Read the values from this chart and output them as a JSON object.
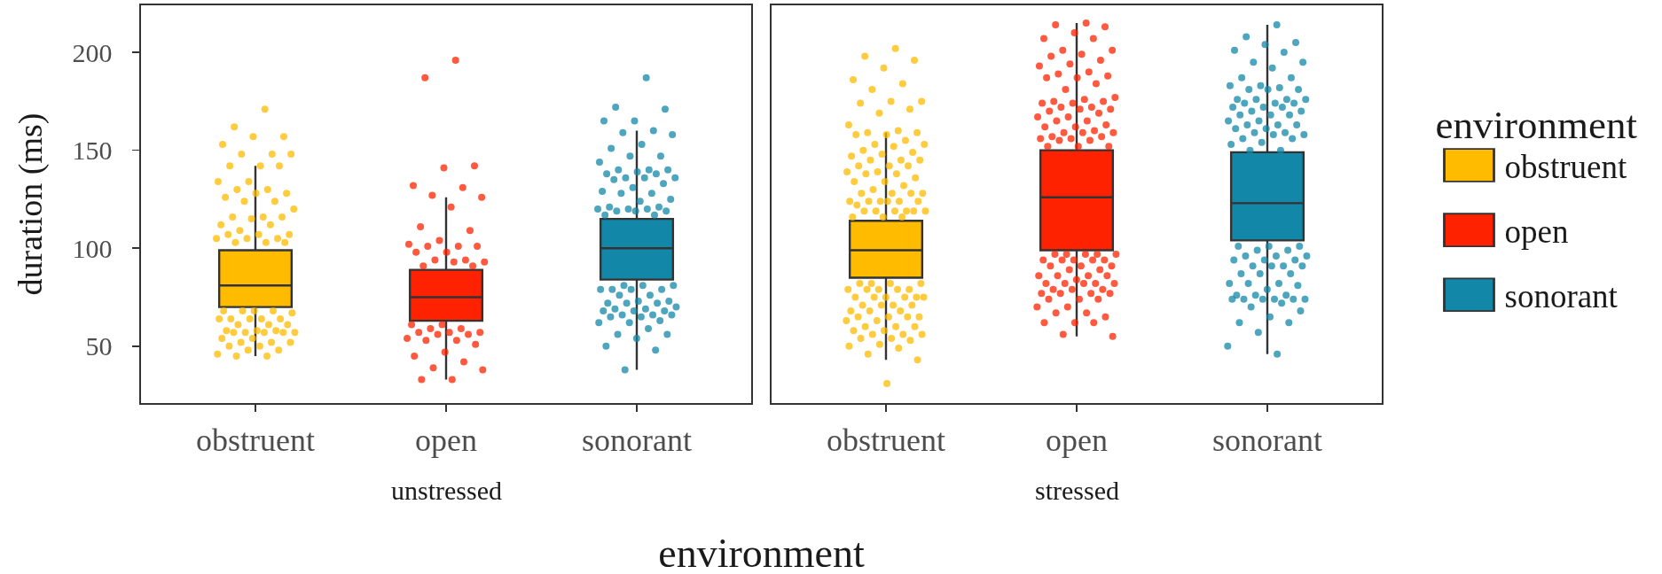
{
  "chart_data": [
    {
      "type": "box",
      "title": "unstressed",
      "xlabel": "environment",
      "ylabel": "duration (ms)",
      "categories": [
        "obstruent",
        "open",
        "sonorant"
      ],
      "colors": [
        "#ffbb00",
        "#ff2200",
        "#1287a8"
      ],
      "boxes": [
        {
          "low": 45,
          "q1": 70,
          "median": 81,
          "q3": 99,
          "high": 142
        },
        {
          "low": 33,
          "q1": 63,
          "median": 75,
          "q3": 89,
          "high": 126
        },
        {
          "low": 38,
          "q1": 84,
          "median": 100,
          "q3": 115,
          "high": 160
        }
      ],
      "series": [
        {
          "type": "scatter",
          "color": "#ffbb00",
          "x": [
            "obstruent",
            "obstruent",
            "obstruent",
            "obstruent",
            "obstruent",
            "obstruent",
            "obstruent",
            "obstruent",
            "obstruent",
            "obstruent",
            "obstruent",
            "obstruent",
            "obstruent",
            "obstruent",
            "obstruent",
            "obstruent",
            "obstruent",
            "obstruent",
            "obstruent",
            "obstruent",
            "obstruent",
            "obstruent",
            "obstruent",
            "obstruent",
            "obstruent",
            "obstruent",
            "obstruent",
            "obstruent",
            "obstruent",
            "obstruent",
            "obstruent",
            "obstruent",
            "obstruent",
            "obstruent",
            "obstruent",
            "obstruent",
            "obstruent",
            "obstruent",
            "obstruent",
            "obstruent",
            "obstruent",
            "obstruent",
            "obstruent",
            "obstruent",
            "obstruent",
            "obstruent",
            "obstruent",
            "obstruent",
            "obstruent",
            "obstruent",
            "obstruent",
            "obstruent",
            "obstruent",
            "obstruent",
            "obstruent",
            "obstruent",
            "obstruent",
            "obstruent",
            "obstruent",
            "obstruent",
            "obstruent",
            "obstruent",
            "obstruent",
            "obstruent",
            "obstruent",
            "obstruent",
            "obstruent",
            "obstruent",
            "obstruent",
            "obstruent"
          ],
          "values": [
            171,
            162,
            157,
            157,
            153,
            148,
            148,
            148,
            142,
            142,
            142,
            134,
            134,
            130,
            130,
            128,
            128,
            126,
            124,
            124,
            120,
            116,
            116,
            116,
            115,
            112,
            112,
            109,
            107,
            107,
            107,
            105,
            105,
            105,
            103,
            103,
            103,
            68,
            68,
            68,
            68,
            67,
            64,
            64,
            64,
            64,
            64,
            61,
            61,
            61,
            58,
            58,
            58,
            57,
            57,
            57,
            57,
            57,
            54,
            54,
            52,
            52,
            52,
            50,
            50,
            48,
            48,
            46,
            45,
            45
          ]
        },
        {
          "type": "scatter",
          "color": "#ff2200",
          "x": [
            "open",
            "open",
            "open",
            "open",
            "open",
            "open",
            "open",
            "open",
            "open",
            "open",
            "open",
            "open",
            "open",
            "open",
            "open",
            "open",
            "open",
            "open",
            "open",
            "open",
            "open",
            "open",
            "open",
            "open",
            "open",
            "open",
            "open",
            "open",
            "open",
            "open",
            "open",
            "open",
            "open",
            "open",
            "open",
            "open",
            "open",
            "open",
            "open",
            "open",
            "open",
            "open",
            "open",
            "open"
          ],
          "values": [
            196,
            187,
            142,
            141,
            132,
            131,
            127,
            126,
            121,
            111,
            109,
            104,
            102,
            101,
            101,
            101,
            98,
            98,
            94,
            94,
            93,
            93,
            91,
            91,
            61,
            61,
            59,
            59,
            57,
            57,
            57,
            56,
            56,
            54,
            53,
            53,
            51,
            47,
            45,
            42,
            39,
            38,
            33,
            33
          ]
        },
        {
          "type": "scatter",
          "color": "#1287a8",
          "x": [
            "sonorant",
            "sonorant",
            "sonorant",
            "sonorant",
            "sonorant",
            "sonorant",
            "sonorant",
            "sonorant",
            "sonorant",
            "sonorant",
            "sonorant",
            "sonorant",
            "sonorant",
            "sonorant",
            "sonorant",
            "sonorant",
            "sonorant",
            "sonorant",
            "sonorant",
            "sonorant",
            "sonorant",
            "sonorant",
            "sonorant",
            "sonorant",
            "sonorant",
            "sonorant",
            "sonorant",
            "sonorant",
            "sonorant",
            "sonorant",
            "sonorant",
            "sonorant",
            "sonorant",
            "sonorant",
            "sonorant",
            "sonorant",
            "sonorant",
            "sonorant",
            "sonorant",
            "sonorant",
            "sonorant",
            "sonorant",
            "sonorant",
            "sonorant",
            "sonorant",
            "sonorant",
            "sonorant",
            "sonorant",
            "sonorant",
            "sonorant",
            "sonorant",
            "sonorant",
            "sonorant",
            "sonorant",
            "sonorant",
            "sonorant",
            "sonorant",
            "sonorant",
            "sonorant",
            "sonorant",
            "sonorant",
            "sonorant",
            "sonorant",
            "sonorant",
            "sonorant",
            "sonorant",
            "sonorant",
            "sonorant",
            "sonorant",
            "sonorant",
            "sonorant",
            "sonorant",
            "sonorant",
            "sonorant",
            "sonorant"
          ],
          "values": [
            187,
            172,
            171,
            165,
            165,
            160,
            159,
            158,
            153,
            151,
            147,
            147,
            144,
            140,
            140,
            140,
            139,
            138,
            138,
            136,
            136,
            136,
            135,
            133,
            131,
            129,
            128,
            128,
            125,
            124,
            121,
            121,
            120,
            120,
            120,
            119,
            119,
            119,
            117,
            117,
            81,
            81,
            81,
            79,
            79,
            79,
            79,
            76,
            76,
            73,
            73,
            72,
            72,
            72,
            70,
            69,
            69,
            68,
            68,
            68,
            66,
            66,
            66,
            65,
            65,
            63,
            62,
            62,
            59,
            56,
            56,
            54,
            50,
            48,
            38
          ]
        }
      ],
      "ylim": [
        21,
        224
      ],
      "yticks": [
        50,
        100,
        150,
        200
      ]
    },
    {
      "type": "box",
      "title": "stressed",
      "categories": [
        "obstruent",
        "open",
        "sonorant"
      ],
      "colors": [
        "#ffbb00",
        "#ff2200",
        "#1287a8"
      ],
      "boxes": [
        {
          "low": 43,
          "q1": 85,
          "median": 99,
          "q3": 114,
          "high": 159
        },
        {
          "low": 55,
          "q1": 99,
          "median": 126,
          "q3": 150,
          "high": 215
        },
        {
          "low": 46,
          "q1": 104,
          "median": 123,
          "q3": 149,
          "high": 214
        }
      ],
      "series": [
        {
          "type": "scatter",
          "name": "obstruent",
          "color": "#ffbb00",
          "x": [
            "obstruent",
            "obstruent",
            "obstruent",
            "obstruent",
            "obstruent",
            "obstruent",
            "obstruent",
            "obstruent",
            "obstruent",
            "obstruent",
            "obstruent",
            "obstruent",
            "obstruent",
            "obstruent",
            "obstruent",
            "obstruent",
            "obstruent",
            "obstruent",
            "obstruent",
            "obstruent",
            "obstruent",
            "obstruent",
            "obstruent",
            "obstruent",
            "obstruent",
            "obstruent",
            "obstruent",
            "obstruent",
            "obstruent",
            "obstruent",
            "obstruent",
            "obstruent",
            "obstruent",
            "obstruent",
            "obstruent",
            "obstruent",
            "obstruent",
            "obstruent",
            "obstruent",
            "obstruent",
            "obstruent",
            "obstruent",
            "obstruent",
            "obstruent",
            "obstruent",
            "obstruent",
            "obstruent",
            "obstruent",
            "obstruent",
            "obstruent",
            "obstruent",
            "obstruent",
            "obstruent",
            "obstruent",
            "obstruent",
            "obstruent",
            "obstruent",
            "obstruent",
            "obstruent",
            "obstruent",
            "obstruent",
            "obstruent",
            "obstruent",
            "obstruent",
            "obstruent",
            "obstruent",
            "obstruent",
            "obstruent",
            "obstruent",
            "obstruent",
            "obstruent",
            "obstruent",
            "obstruent",
            "obstruent",
            "obstruent",
            "obstruent",
            "obstruent",
            "obstruent",
            "obstruent",
            "obstruent",
            "obstruent",
            "obstruent",
            "obstruent",
            "obstruent",
            "obstruent",
            "obstruent",
            "obstruent",
            "obstruent",
            "obstruent",
            "obstruent",
            "obstruent",
            "obstruent",
            "obstruent",
            "obstruent",
            "obstruent",
            "obstruent",
            "obstruent",
            "obstruent",
            "obstruent",
            "obstruent",
            "obstruent",
            "obstruent",
            "obstruent",
            "obstruent",
            "obstruent",
            "obstruent"
          ],
          "values": [
            202,
            198,
            196,
            192,
            186,
            184,
            181,
            175,
            175,
            174,
            171,
            169,
            163,
            160,
            159,
            159,
            158,
            158,
            155,
            153,
            153,
            152,
            150,
            149,
            148,
            147,
            145,
            145,
            145,
            142,
            142,
            142,
            139,
            139,
            138,
            138,
            136,
            134,
            134,
            132,
            130,
            128,
            128,
            128,
            128,
            124,
            124,
            124,
            124,
            124,
            124,
            122,
            119,
            119,
            119,
            119,
            119,
            119,
            116,
            116,
            116,
            82,
            82,
            82,
            82,
            79,
            79,
            79,
            79,
            79,
            75,
            75,
            75,
            75,
            75,
            75,
            71,
            71,
            71,
            71,
            68,
            68,
            68,
            65,
            65,
            65,
            65,
            63,
            63,
            60,
            60,
            60,
            58,
            58,
            56,
            56,
            56,
            54,
            54,
            53,
            51,
            50,
            49,
            46,
            43,
            31
          ]
        },
        {
          "type": "scatter",
          "name": "open",
          "color": "#ff2200",
          "x": [
            "open",
            "open",
            "open",
            "open",
            "open",
            "open",
            "open",
            "open",
            "open",
            "open",
            "open",
            "open",
            "open",
            "open",
            "open",
            "open",
            "open",
            "open",
            "open",
            "open",
            "open",
            "open",
            "open",
            "open",
            "open",
            "open",
            "open",
            "open",
            "open",
            "open",
            "open",
            "open",
            "open",
            "open",
            "open",
            "open",
            "open",
            "open",
            "open",
            "open",
            "open",
            "open",
            "open",
            "open",
            "open",
            "open",
            "open",
            "open",
            "open",
            "open",
            "open",
            "open",
            "open",
            "open",
            "open",
            "open",
            "open",
            "open",
            "open",
            "open",
            "open",
            "open",
            "open",
            "open",
            "open",
            "open",
            "open",
            "open",
            "open",
            "open",
            "open",
            "open",
            "open",
            "open",
            "open",
            "open",
            "open",
            "open",
            "open",
            "open",
            "open",
            "open",
            "open",
            "open",
            "open",
            "open",
            "open",
            "open",
            "open",
            "open",
            "open",
            "open",
            "open",
            "open",
            "open",
            "open",
            "open"
          ],
          "values": [
            215,
            214,
            213,
            210,
            207,
            207,
            201,
            201,
            199,
            198,
            196,
            194,
            193,
            190,
            189,
            188,
            187,
            187,
            184,
            181,
            177,
            176,
            175,
            175,
            174,
            174,
            172,
            172,
            171,
            171,
            170,
            169,
            167,
            167,
            165,
            165,
            163,
            162,
            162,
            160,
            159,
            159,
            159,
            157,
            157,
            156,
            156,
            155,
            155,
            152,
            152,
            152,
            97,
            97,
            97,
            97,
            97,
            94,
            94,
            94,
            94,
            94,
            91,
            91,
            91,
            89,
            89,
            86,
            86,
            86,
            86,
            84,
            82,
            82,
            82,
            82,
            82,
            79,
            79,
            79,
            77,
            77,
            77,
            77,
            74,
            74,
            74,
            70,
            70,
            67,
            67,
            65,
            62,
            62,
            62,
            56,
            55
          ]
        },
        {
          "type": "scatter",
          "name": "sonorant",
          "color": "#1287a8",
          "x": [
            "sonorant",
            "sonorant",
            "sonorant",
            "sonorant",
            "sonorant",
            "sonorant",
            "sonorant",
            "sonorant",
            "sonorant",
            "sonorant",
            "sonorant",
            "sonorant",
            "sonorant",
            "sonorant",
            "sonorant",
            "sonorant",
            "sonorant",
            "sonorant",
            "sonorant",
            "sonorant",
            "sonorant",
            "sonorant",
            "sonorant",
            "sonorant",
            "sonorant",
            "sonorant",
            "sonorant",
            "sonorant",
            "sonorant",
            "sonorant",
            "sonorant",
            "sonorant",
            "sonorant",
            "sonorant",
            "sonorant",
            "sonorant",
            "sonorant",
            "sonorant",
            "sonorant",
            "sonorant",
            "sonorant",
            "sonorant",
            "sonorant",
            "sonorant",
            "sonorant",
            "sonorant",
            "sonorant",
            "sonorant",
            "sonorant",
            "sonorant",
            "sonorant",
            "sonorant",
            "sonorant",
            "sonorant",
            "sonorant",
            "sonorant",
            "sonorant",
            "sonorant",
            "sonorant",
            "sonorant",
            "sonorant",
            "sonorant",
            "sonorant",
            "sonorant",
            "sonorant",
            "sonorant",
            "sonorant",
            "sonorant",
            "sonorant",
            "sonorant",
            "sonorant",
            "sonorant",
            "sonorant",
            "sonorant",
            "sonorant",
            "sonorant",
            "sonorant",
            "sonorant",
            "sonorant",
            "sonorant",
            "sonorant",
            "sonorant",
            "sonorant",
            "sonorant",
            "sonorant",
            "sonorant",
            "sonorant",
            "sonorant",
            "sonorant",
            "sonorant"
          ],
          "values": [
            214,
            208,
            205,
            204,
            201,
            200,
            195,
            195,
            192,
            187,
            187,
            183,
            183,
            182,
            181,
            181,
            181,
            176,
            176,
            176,
            176,
            174,
            174,
            174,
            172,
            172,
            172,
            170,
            170,
            168,
            168,
            168,
            165,
            165,
            163,
            163,
            163,
            161,
            161,
            159,
            159,
            158,
            158,
            156,
            156,
            154,
            153,
            150,
            150,
            101,
            101,
            101,
            99,
            99,
            96,
            96,
            96,
            94,
            94,
            94,
            91,
            91,
            91,
            91,
            87,
            87,
            87,
            82,
            82,
            82,
            81,
            79,
            76,
            76,
            76,
            74,
            74,
            74,
            74,
            74,
            74,
            72,
            70,
            68,
            65,
            62,
            62,
            57,
            50,
            46
          ]
        }
      ],
      "ylim": [
        21,
        224
      ],
      "yticks": [
        50,
        100,
        150,
        200
      ],
      "tick_labels": "x",
      "legend": "right",
      "legend_title": "environment"
    }
  ]
}
